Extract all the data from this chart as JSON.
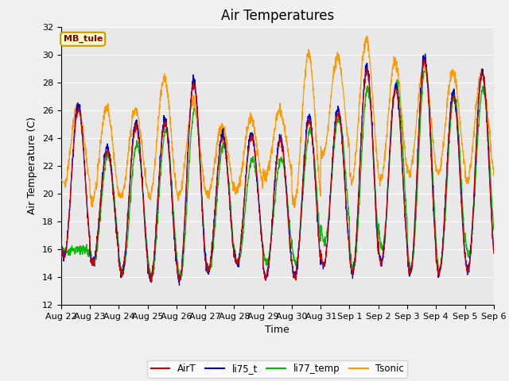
{
  "title": "Air Temperatures",
  "ylabel": "Air Temperature (C)",
  "xlabel": "Time",
  "ylim": [
    12,
    32
  ],
  "xtick_labels": [
    "Aug 22",
    "Aug 23",
    "Aug 24",
    "Aug 25",
    "Aug 26",
    "Aug 27",
    "Aug 28",
    "Aug 29",
    "Aug 30",
    "Aug 31",
    "Sep 1",
    "Sep 2",
    "Sep 3",
    "Sep 4",
    "Sep 5",
    "Sep 6"
  ],
  "annotation_text": "MB_tule",
  "annotation_bg": "#ffffcc",
  "annotation_edge": "#cc9900",
  "annotation_text_color": "#880000",
  "colors": {
    "AirT": "#cc0000",
    "li75_t": "#0000cc",
    "li77_temp": "#00bb00",
    "Tsonic": "#ff9900"
  },
  "bg_color": "#e8e8e8",
  "grid_color": "#ffffff",
  "title_fontsize": 12,
  "label_fontsize": 9,
  "tick_fontsize": 8
}
